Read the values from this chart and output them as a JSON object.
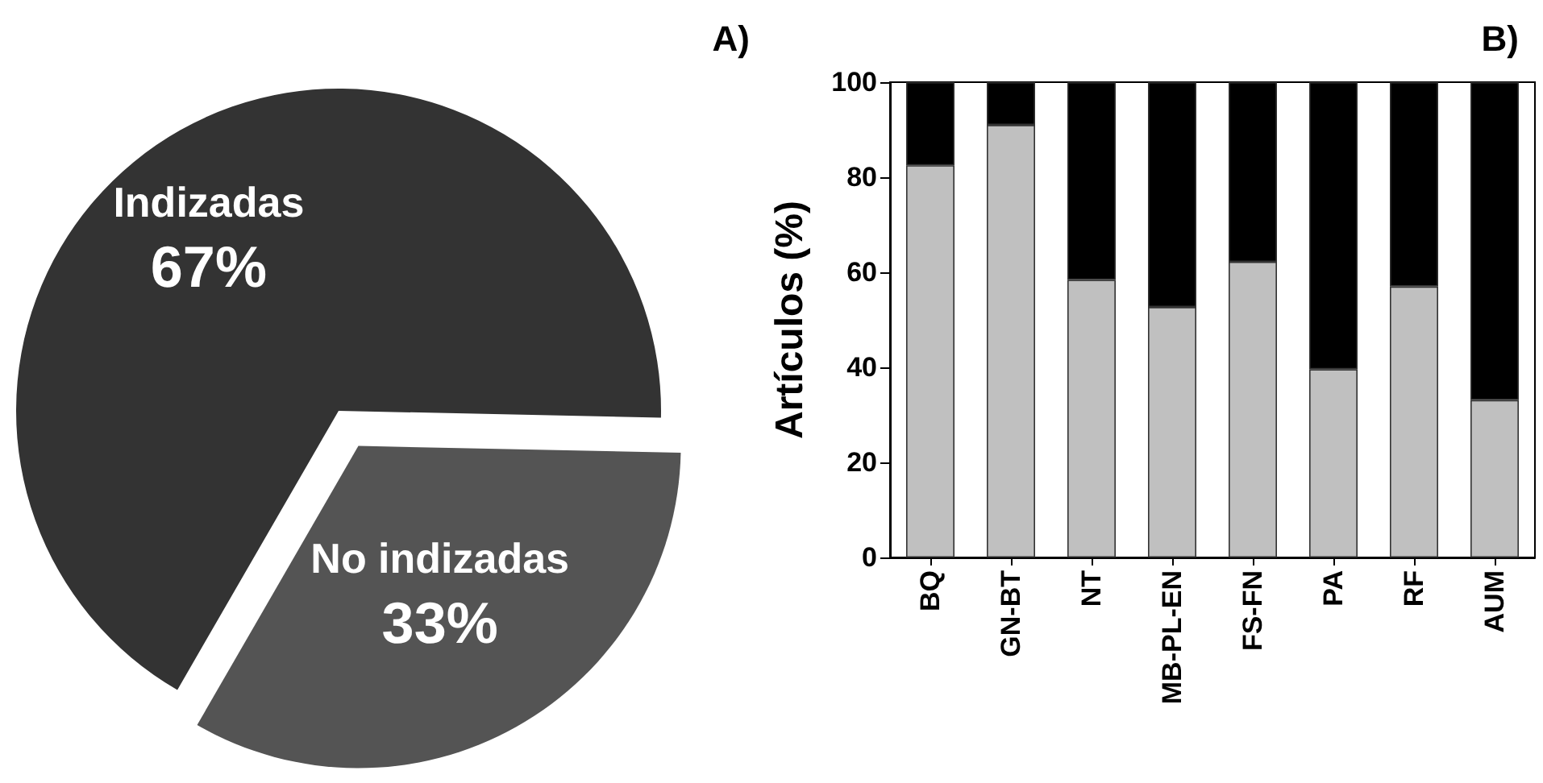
{
  "chart_data": [
    {
      "type": "pie",
      "title": "A)",
      "categories": [
        "Indizadas",
        "No indizadas"
      ],
      "values": [
        67,
        33
      ],
      "value_labels": [
        "67%",
        "33%"
      ],
      "colors": [
        "#333333",
        "#545454"
      ],
      "legend": false
    },
    {
      "type": "bar",
      "title": "B)",
      "ylabel": "Artículos (%)",
      "categories": [
        "BQ",
        "GN-BT",
        "NT",
        "MB-PL-EN",
        "FS-FN",
        "PA",
        "RF",
        "AUM"
      ],
      "stacked": true,
      "ylim": [
        0,
        100
      ],
      "yticks": [
        0,
        20,
        40,
        60,
        80,
        100
      ],
      "grid": false,
      "legend": false,
      "series": [
        {
          "color": "#c0c0c0",
          "values": [
            82.5,
            91,
            58.4,
            52.7,
            62.2,
            39.6,
            57,
            33.1
          ]
        },
        {
          "color": "#000000",
          "values": [
            17.5,
            9,
            41.6,
            47.3,
            37.8,
            60.4,
            43,
            66.9
          ]
        }
      ]
    }
  ]
}
